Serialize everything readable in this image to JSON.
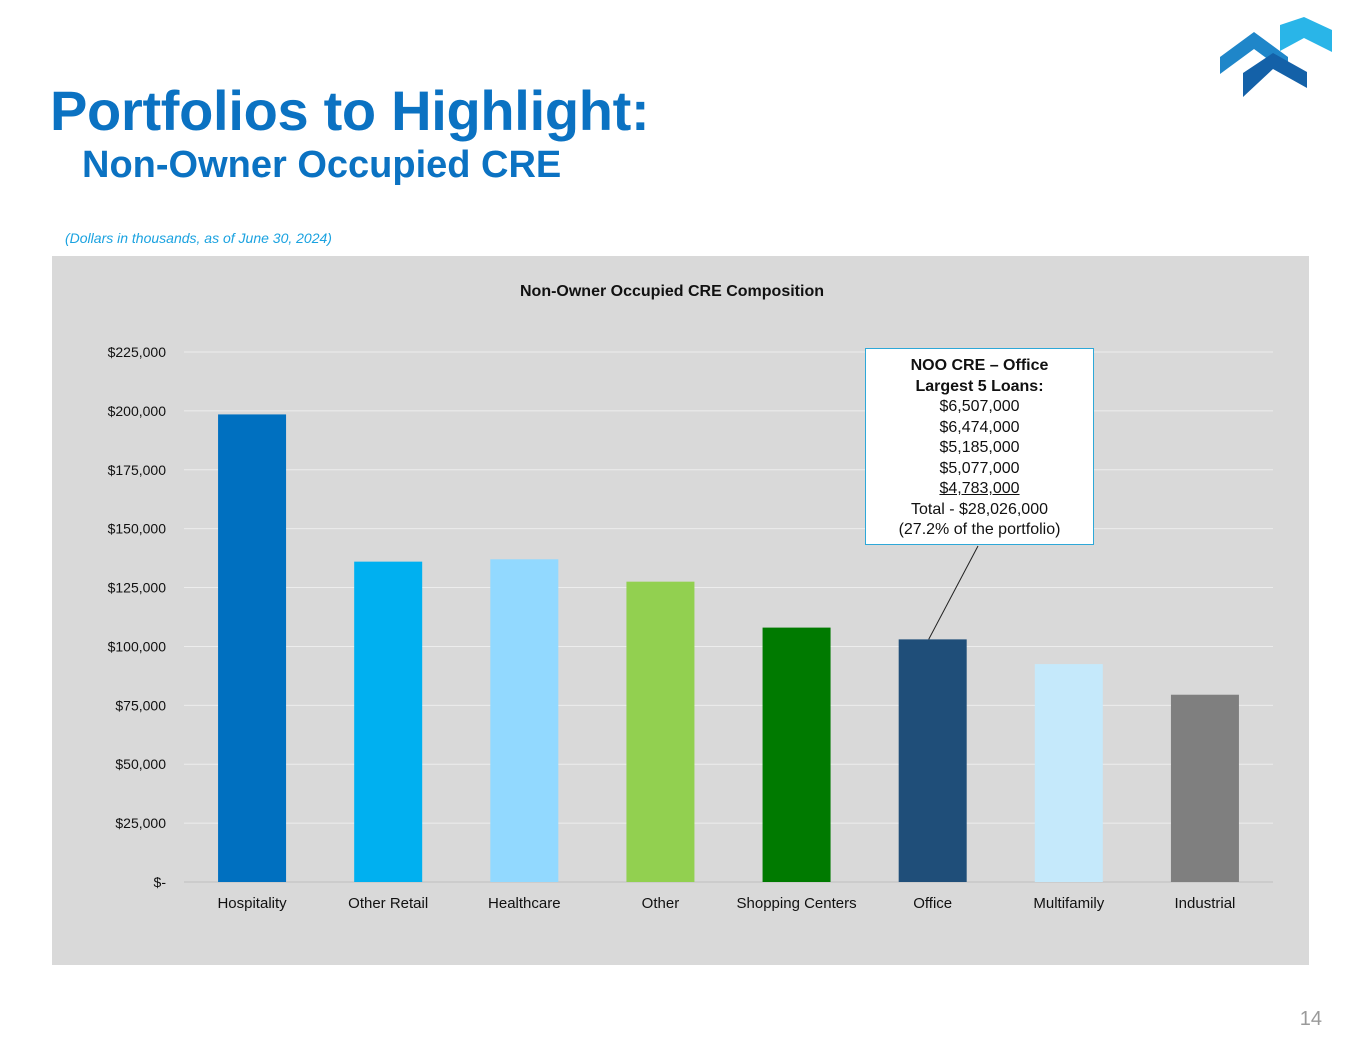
{
  "slide": {
    "title": "Portfolios to Highlight:",
    "subtitle": "Non-Owner Occupied CRE",
    "note": "(Dollars in thousands, as of June 30, 2024)",
    "page_number": "14",
    "brand_colors": [
      "#0B72C2",
      "#1AA2E0"
    ]
  },
  "callout": {
    "title_line1": "NOO CRE – Office",
    "title_line2": "Largest 5 Loans:",
    "loans": [
      "$6,507,000",
      "$6,474,000",
      "$5,185,000",
      "$5,077,000",
      "$4,783,000"
    ],
    "total": "Total - $28,026,000",
    "share": "(27.2% of the portfolio)",
    "points_to": "Office"
  },
  "chart_data": {
    "type": "bar",
    "title": "Non-Owner Occupied CRE Composition",
    "categories": [
      "Hospitality",
      "Other Retail",
      "Healthcare",
      "Other",
      "Shopping Centers",
      "Office",
      "Multifamily",
      "Industrial"
    ],
    "values": [
      198500,
      136000,
      137000,
      127500,
      108000,
      103000,
      92500,
      79500
    ],
    "colors": [
      "#0070C0",
      "#00B0F0",
      "#92D9FF",
      "#92D050",
      "#007A00",
      "#1F4E79",
      "#C5E9FB",
      "#7F7F7F"
    ],
    "ylim": [
      0,
      225000
    ],
    "yticks": [
      0,
      25000,
      50000,
      75000,
      100000,
      125000,
      150000,
      175000,
      200000,
      225000
    ],
    "ytick_labels": [
      "$-",
      "$25,000",
      "$50,000",
      "$75,000",
      "$100,000",
      "$125,000",
      "$150,000",
      "$175,000",
      "$200,000",
      "$225,000"
    ],
    "grid": true,
    "legend": "none"
  }
}
